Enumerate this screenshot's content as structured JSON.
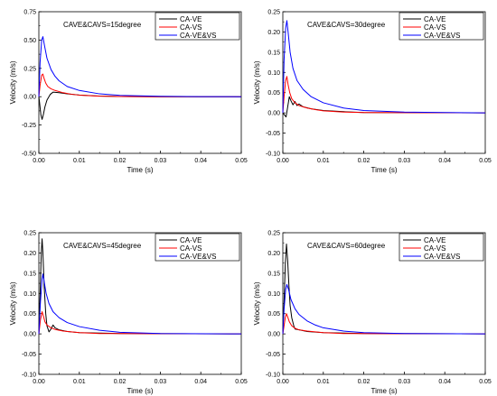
{
  "chart_data": [
    {
      "type": "line",
      "annotation": "CAVE&CAVS=15degree",
      "xlabel": "Time (s)",
      "ylabel": "Velocity (m/s)",
      "xlim": [
        0,
        0.05
      ],
      "ylim": [
        -0.5,
        0.75
      ],
      "xticks": [
        0.0,
        0.01,
        0.02,
        0.03,
        0.04,
        0.05
      ],
      "xtick_labels": [
        "0.00",
        "0.01",
        "0.02",
        "0.03",
        "0.04",
        "0.05"
      ],
      "yticks": [
        -0.5,
        -0.25,
        0.0,
        0.25,
        0.5,
        0.75
      ],
      "ytick_labels": [
        "-0.50",
        "-0.25",
        "0.00",
        "0.25",
        "0.50",
        "0.75"
      ],
      "legend_position": "top-right",
      "series": [
        {
          "name": "CA-VE",
          "color": "#000000",
          "points": [
            [
              0,
              0
            ],
            [
              0.0002,
              -0.06
            ],
            [
              0.0005,
              -0.16
            ],
            [
              0.0008,
              -0.2
            ],
            [
              0.0011,
              -0.16
            ],
            [
              0.0015,
              -0.09
            ],
            [
              0.002,
              -0.03
            ],
            [
              0.0028,
              0.02
            ],
            [
              0.0035,
              0.04
            ],
            [
              0.005,
              0.035
            ],
            [
              0.007,
              0.025
            ],
            [
              0.01,
              0.015
            ],
            [
              0.015,
              0.006
            ],
            [
              0.02,
              0.002
            ],
            [
              0.03,
              0.0
            ],
            [
              0.05,
              0.0
            ]
          ]
        },
        {
          "name": "CA-VS",
          "color": "#ff0000",
          "points": [
            [
              0,
              0
            ],
            [
              0.0003,
              0.1
            ],
            [
              0.0007,
              0.19
            ],
            [
              0.001,
              0.2
            ],
            [
              0.0013,
              0.16
            ],
            [
              0.0017,
              0.12
            ],
            [
              0.0022,
              0.09
            ],
            [
              0.003,
              0.07
            ],
            [
              0.004,
              0.055
            ],
            [
              0.006,
              0.035
            ],
            [
              0.008,
              0.022
            ],
            [
              0.01,
              0.014
            ],
            [
              0.015,
              0.005
            ],
            [
              0.02,
              0.002
            ],
            [
              0.03,
              0.0
            ],
            [
              0.05,
              0.0
            ]
          ]
        },
        {
          "name": "CA-VE&VS",
          "color": "#0000ff",
          "points": [
            [
              0,
              0
            ],
            [
              0.0003,
              0.3
            ],
            [
              0.0007,
              0.5
            ],
            [
              0.001,
              0.53
            ],
            [
              0.0014,
              0.45
            ],
            [
              0.002,
              0.34
            ],
            [
              0.003,
              0.24
            ],
            [
              0.004,
              0.18
            ],
            [
              0.005,
              0.14
            ],
            [
              0.007,
              0.09
            ],
            [
              0.01,
              0.055
            ],
            [
              0.015,
              0.025
            ],
            [
              0.02,
              0.012
            ],
            [
              0.03,
              0.004
            ],
            [
              0.04,
              0.001
            ],
            [
              0.05,
              0.0
            ]
          ]
        }
      ]
    },
    {
      "type": "line",
      "annotation": "CAVE&CAVS=30degree",
      "xlabel": "Time (s)",
      "ylabel": "Velocity (m/s)",
      "xlim": [
        0,
        0.05
      ],
      "ylim": [
        -0.1,
        0.25
      ],
      "xticks": [
        0.0,
        0.01,
        0.02,
        0.03,
        0.04,
        0.05
      ],
      "xtick_labels": [
        "0.00",
        "0.01",
        "0.02",
        "0.03",
        "0.04",
        "0.05"
      ],
      "yticks": [
        -0.1,
        -0.05,
        0.0,
        0.05,
        0.1,
        0.15,
        0.2,
        0.25
      ],
      "ytick_labels": [
        "-0.10",
        "-0.05",
        "0.00",
        "0.05",
        "0.10",
        "0.15",
        "0.20",
        "0.25"
      ],
      "legend_position": "top-right",
      "series": [
        {
          "name": "CA-VE",
          "color": "#000000",
          "points": [
            [
              0,
              0
            ],
            [
              0.0004,
              -0.005
            ],
            [
              0.0008,
              -0.01
            ],
            [
              0.0012,
              0.015
            ],
            [
              0.0016,
              0.04
            ],
            [
              0.002,
              0.03
            ],
            [
              0.0025,
              0.02
            ],
            [
              0.003,
              0.028
            ],
            [
              0.0035,
              0.018
            ],
            [
              0.004,
              0.022
            ],
            [
              0.005,
              0.015
            ],
            [
              0.007,
              0.01
            ],
            [
              0.01,
              0.006
            ],
            [
              0.015,
              0.003
            ],
            [
              0.02,
              0.001
            ],
            [
              0.05,
              0.0
            ]
          ]
        },
        {
          "name": "CA-VS",
          "color": "#ff0000",
          "points": [
            [
              0,
              0
            ],
            [
              0.0003,
              0.04
            ],
            [
              0.0007,
              0.08
            ],
            [
              0.001,
              0.09
            ],
            [
              0.0013,
              0.07
            ],
            [
              0.0017,
              0.05
            ],
            [
              0.0022,
              0.035
            ],
            [
              0.003,
              0.025
            ],
            [
              0.004,
              0.018
            ],
            [
              0.006,
              0.012
            ],
            [
              0.008,
              0.008
            ],
            [
              0.01,
              0.005
            ],
            [
              0.015,
              0.002
            ],
            [
              0.02,
              0.001
            ],
            [
              0.05,
              0.0
            ]
          ]
        },
        {
          "name": "CA-VE&VS",
          "color": "#0000ff",
          "points": [
            [
              0,
              0
            ],
            [
              0.0003,
              0.13
            ],
            [
              0.0007,
              0.21
            ],
            [
              0.001,
              0.228
            ],
            [
              0.0013,
              0.2
            ],
            [
              0.0018,
              0.15
            ],
            [
              0.0025,
              0.11
            ],
            [
              0.0035,
              0.08
            ],
            [
              0.005,
              0.058
            ],
            [
              0.007,
              0.04
            ],
            [
              0.01,
              0.025
            ],
            [
              0.015,
              0.012
            ],
            [
              0.02,
              0.006
            ],
            [
              0.03,
              0.002
            ],
            [
              0.04,
              0.001
            ],
            [
              0.05,
              0.0
            ]
          ]
        }
      ]
    },
    {
      "type": "line",
      "annotation": "CAVE&CAVS=45degree",
      "xlabel": "Time (s)",
      "ylabel": "Velocity (m/s)",
      "xlim": [
        0,
        0.05
      ],
      "ylim": [
        -0.1,
        0.25
      ],
      "xticks": [
        0.0,
        0.01,
        0.02,
        0.03,
        0.04,
        0.05
      ],
      "xtick_labels": [
        "0.00",
        "0.01",
        "0.02",
        "0.03",
        "0.04",
        "0.05"
      ],
      "yticks": [
        -0.1,
        -0.05,
        0.0,
        0.05,
        0.1,
        0.15,
        0.2,
        0.25
      ],
      "ytick_labels": [
        "-0.10",
        "-0.05",
        "0.00",
        "0.05",
        "0.10",
        "0.15",
        "0.20",
        "0.25"
      ],
      "legend_position": "top-right",
      "series": [
        {
          "name": "CA-VE",
          "color": "#000000",
          "points": [
            [
              0,
              0
            ],
            [
              0.0003,
              0.1
            ],
            [
              0.0006,
              0.2
            ],
            [
              0.0008,
              0.235
            ],
            [
              0.001,
              0.2
            ],
            [
              0.0013,
              0.12
            ],
            [
              0.0017,
              0.05
            ],
            [
              0.002,
              0.02
            ],
            [
              0.0025,
              0.005
            ],
            [
              0.003,
              0.012
            ],
            [
              0.0035,
              0.022
            ],
            [
              0.004,
              0.015
            ],
            [
              0.005,
              0.01
            ],
            [
              0.007,
              0.006
            ],
            [
              0.01,
              0.003
            ],
            [
              0.02,
              0.001
            ],
            [
              0.05,
              0.0
            ]
          ]
        },
        {
          "name": "CA-VS",
          "color": "#ff0000",
          "points": [
            [
              0,
              0
            ],
            [
              0.0004,
              0.035
            ],
            [
              0.0008,
              0.055
            ],
            [
              0.0011,
              0.045
            ],
            [
              0.0015,
              0.03
            ],
            [
              0.002,
              0.022
            ],
            [
              0.003,
              0.015
            ],
            [
              0.004,
              0.011
            ],
            [
              0.006,
              0.007
            ],
            [
              0.008,
              0.005
            ],
            [
              0.01,
              0.003
            ],
            [
              0.015,
              0.001
            ],
            [
              0.05,
              0.0
            ]
          ]
        },
        {
          "name": "CA-VE&VS",
          "color": "#0000ff",
          "points": [
            [
              0,
              0
            ],
            [
              0.0004,
              0.08
            ],
            [
              0.0008,
              0.135
            ],
            [
              0.001,
              0.148
            ],
            [
              0.0013,
              0.13
            ],
            [
              0.0018,
              0.1
            ],
            [
              0.0025,
              0.075
            ],
            [
              0.0035,
              0.055
            ],
            [
              0.005,
              0.04
            ],
            [
              0.007,
              0.028
            ],
            [
              0.01,
              0.018
            ],
            [
              0.015,
              0.009
            ],
            [
              0.02,
              0.004
            ],
            [
              0.03,
              0.001
            ],
            [
              0.05,
              0.0
            ]
          ]
        }
      ]
    },
    {
      "type": "line",
      "annotation": "CAVE&CAVS=60degree",
      "xlabel": "Time (s)",
      "ylabel": "Velocity (m/s)",
      "xlim": [
        0,
        0.05
      ],
      "ylim": [
        -0.1,
        0.25
      ],
      "xticks": [
        0.0,
        0.01,
        0.02,
        0.03,
        0.04,
        0.05
      ],
      "xtick_labels": [
        "0.00",
        "0.01",
        "0.02",
        "0.03",
        "0.04",
        "0.05"
      ],
      "yticks": [
        -0.1,
        -0.05,
        0.0,
        0.05,
        0.1,
        0.15,
        0.2,
        0.25
      ],
      "ytick_labels": [
        "-0.10",
        "-0.05",
        "0.00",
        "0.05",
        "0.10",
        "0.15",
        "0.20",
        "0.25"
      ],
      "legend_position": "top-right",
      "series": [
        {
          "name": "CA-VE",
          "color": "#000000",
          "points": [
            [
              0,
              0
            ],
            [
              0.0003,
              0.08
            ],
            [
              0.0006,
              0.17
            ],
            [
              0.0009,
              0.222
            ],
            [
              0.0012,
              0.18
            ],
            [
              0.0015,
              0.12
            ],
            [
              0.0018,
              0.07
            ],
            [
              0.0022,
              0.04
            ],
            [
              0.0027,
              0.02
            ],
            [
              0.003,
              0.012
            ],
            [
              0.004,
              0.01
            ],
            [
              0.006,
              0.006
            ],
            [
              0.01,
              0.003
            ],
            [
              0.02,
              0.001
            ],
            [
              0.05,
              0.0
            ]
          ]
        },
        {
          "name": "CA-VS",
          "color": "#ff0000",
          "points": [
            [
              0,
              0
            ],
            [
              0.0003,
              0.02
            ],
            [
              0.0006,
              0.04
            ],
            [
              0.0009,
              0.05
            ],
            [
              0.0012,
              0.042
            ],
            [
              0.0016,
              0.03
            ],
            [
              0.0022,
              0.02
            ],
            [
              0.003,
              0.014
            ],
            [
              0.004,
              0.01
            ],
            [
              0.006,
              0.007
            ],
            [
              0.01,
              0.003
            ],
            [
              0.015,
              0.001
            ],
            [
              0.05,
              0.0
            ]
          ]
        },
        {
          "name": "CA-VE&VS",
          "color": "#0000ff",
          "points": [
            [
              0,
              0
            ],
            [
              0.0003,
              0.06
            ],
            [
              0.0007,
              0.11
            ],
            [
              0.001,
              0.122
            ],
            [
              0.0014,
              0.11
            ],
            [
              0.002,
              0.085
            ],
            [
              0.003,
              0.062
            ],
            [
              0.004,
              0.048
            ],
            [
              0.006,
              0.032
            ],
            [
              0.008,
              0.022
            ],
            [
              0.01,
              0.015
            ],
            [
              0.015,
              0.007
            ],
            [
              0.02,
              0.003
            ],
            [
              0.03,
              0.001
            ],
            [
              0.05,
              0.0
            ]
          ]
        }
      ]
    }
  ]
}
